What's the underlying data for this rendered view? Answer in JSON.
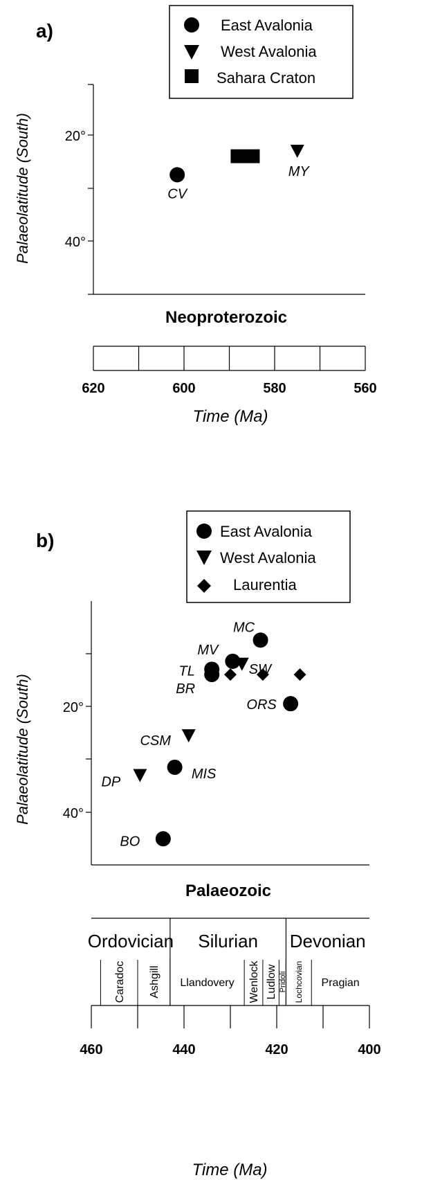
{
  "chart_data": [
    {
      "panel_label": "a)",
      "type": "scatter",
      "ylabel": "Palaeolatitude (South)",
      "xlabel": "Time (Ma)",
      "section_title": "Neoproterozoic",
      "xlim": [
        620,
        560
      ],
      "ylim": [
        10,
        50
      ],
      "y_ticks": [
        20,
        40
      ],
      "y_tick_labels": [
        "20°",
        "40°"
      ],
      "x_ticks": [
        620,
        600,
        580,
        560
      ],
      "x_tick_labels": [
        "620",
        "600",
        "580",
        "560"
      ],
      "legend": [
        {
          "label": "East Avalonia",
          "marker": "circle"
        },
        {
          "label": "West Avalonia",
          "marker": "triangle-down"
        },
        {
          "label": "Sahara Craton",
          "marker": "square"
        }
      ],
      "series": [
        {
          "name": "East Avalonia",
          "marker": "circle",
          "points": [
            {
              "x": 601.5,
              "y": 27.5,
              "label": "CV"
            }
          ]
        },
        {
          "name": "West Avalonia",
          "marker": "triangle-down",
          "points": [
            {
              "x": 575,
              "y": 23,
              "label": "MY"
            }
          ]
        },
        {
          "name": "Sahara Craton",
          "marker": "wide-rect",
          "points": [
            {
              "x": 586.5,
              "y": 24,
              "label": ""
            }
          ]
        }
      ]
    },
    {
      "panel_label": "b)",
      "type": "scatter",
      "ylabel": "Palaeolatitude (South)",
      "xlabel": "Time (Ma)",
      "section_title": "Palaeozoic",
      "xlim": [
        460,
        400
      ],
      "ylim": [
        5,
        50
      ],
      "y_ticks": [
        20,
        40
      ],
      "y_tick_labels": [
        "20°",
        "40°"
      ],
      "x_ticks": [
        460,
        440,
        420,
        400
      ],
      "x_tick_labels": [
        "460",
        "440",
        "420",
        "400"
      ],
      "legend": [
        {
          "label": "East Avalonia",
          "marker": "circle"
        },
        {
          "label": "West Avalonia",
          "marker": "triangle-down"
        },
        {
          "label": "Laurentia",
          "marker": "diamond"
        }
      ],
      "series": [
        {
          "name": "East Avalonia",
          "marker": "circle",
          "points": [
            {
              "x": 423.5,
              "y": 7.5,
              "label": "MC"
            },
            {
              "x": 429.5,
              "y": 11.5,
              "label": "MV"
            },
            {
              "x": 434,
              "y": 13,
              "label": "TL"
            },
            {
              "x": 434,
              "y": 14,
              "label": "BR"
            },
            {
              "x": 417,
              "y": 19.5,
              "label": "ORS"
            },
            {
              "x": 442,
              "y": 31.5,
              "label": "MIS"
            },
            {
              "x": 444.5,
              "y": 45,
              "label": "BO"
            }
          ]
        },
        {
          "name": "West Avalonia",
          "marker": "triangle-down",
          "points": [
            {
              "x": 427.5,
              "y": 12,
              "label": "SW"
            },
            {
              "x": 439,
              "y": 25.5,
              "label": "CSM"
            },
            {
              "x": 449.5,
              "y": 33,
              "label": "DP"
            }
          ]
        },
        {
          "name": "Laurentia",
          "marker": "diamond",
          "points": [
            {
              "x": 430,
              "y": 14,
              "label": ""
            },
            {
              "x": 423,
              "y": 14,
              "label": ""
            },
            {
              "x": 415,
              "y": 14,
              "label": ""
            }
          ]
        }
      ],
      "periods": [
        {
          "label": "Ordovician",
          "from": 460,
          "to": 443
        },
        {
          "label": "Silurian",
          "from": 443,
          "to": 418
        },
        {
          "label": "Devonian",
          "from": 418,
          "to": 400
        }
      ],
      "period_boundaries": [
        443,
        418
      ],
      "stages": [
        {
          "label": "Caradoc",
          "from": 458,
          "to": 450
        },
        {
          "label": "Ashgill",
          "from": 450,
          "to": 443
        },
        {
          "label": "Llandovery",
          "from": 443,
          "to": 427
        },
        {
          "label": "Wenlock",
          "from": 427,
          "to": 423
        },
        {
          "label": "Ludlow",
          "from": 423,
          "to": 419.5
        },
        {
          "label": "Pridoli",
          "from": 419.5,
          "to": 418
        },
        {
          "label": "Lochcovian",
          "from": 418,
          "to": 412.5
        },
        {
          "label": "Pragian",
          "from": 412.5,
          "to": 400
        }
      ]
    }
  ]
}
